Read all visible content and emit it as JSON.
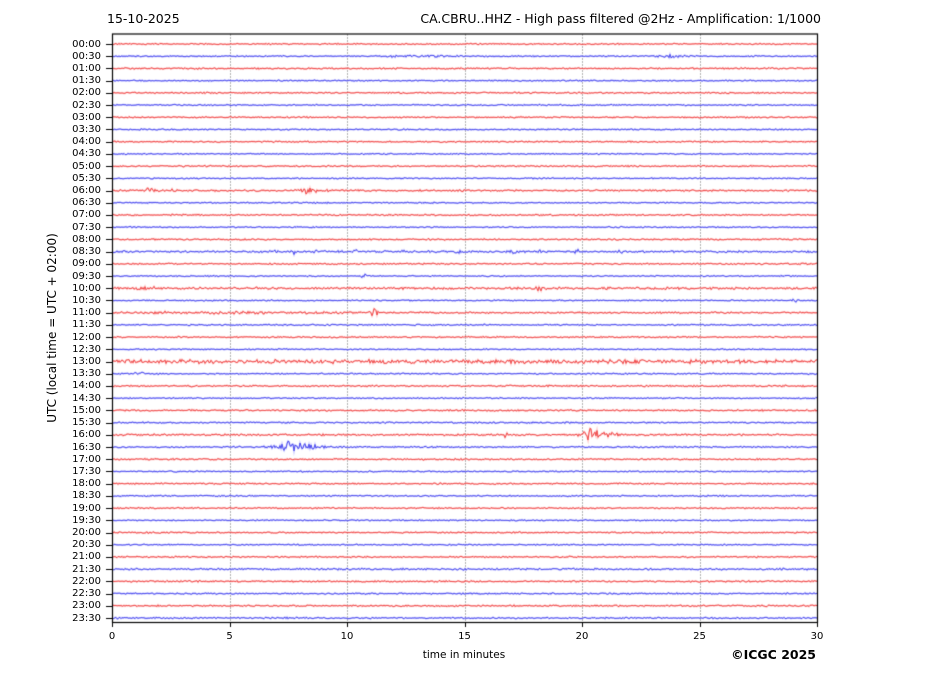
{
  "header": {
    "date": "15-10-2025",
    "title": "CA.CBRU..HHZ - High pass filtered @2Hz - Amplification: 1/1000"
  },
  "footer": {
    "xlabel": "time in minutes",
    "credit": "©ICGC 2025"
  },
  "axes": {
    "ylabel": "UTC (local time = UTC + 02:00)"
  },
  "chart_data": {
    "type": "line",
    "subtype": "helicorder",
    "station": "CA.CBRU..HHZ",
    "date": "15-10-2025",
    "filter": "High pass filtered @2Hz",
    "amplification": "1/1000",
    "title": "CA.CBRU..HHZ - High pass filtered @2Hz - Amplification: 1/1000",
    "xlabel": "time in minutes",
    "ylabel": "UTC (local time = UTC + 02:00)",
    "x_range": [
      0,
      30
    ],
    "x_ticks": [
      0,
      5,
      10,
      15,
      20,
      25,
      30
    ],
    "minutes_per_row": 30,
    "grid_minutes": [
      5,
      10,
      15,
      20,
      25
    ],
    "legend_position": "none",
    "colors": {
      "red_core": "#e82222",
      "red_halo": "#ff9c9c",
      "blue_core": "#2525e6",
      "blue_halo": "#9c9cff",
      "frame": "#000000",
      "grid": "#555555"
    },
    "rows": [
      {
        "label": "00:00",
        "color": "red",
        "noise": 0.55,
        "events": []
      },
      {
        "label": "00:30",
        "color": "blue",
        "noise": 0.5,
        "events": [
          {
            "t": 13.0,
            "a": 0.55,
            "w": 1.0
          },
          {
            "t": 23.9,
            "a": 0.95,
            "w": 0.5
          }
        ]
      },
      {
        "label": "01:00",
        "color": "red",
        "noise": 0.6,
        "events": []
      },
      {
        "label": "01:30",
        "color": "blue",
        "noise": 0.5,
        "events": []
      },
      {
        "label": "02:00",
        "color": "red",
        "noise": 0.55,
        "events": []
      },
      {
        "label": "02:30",
        "color": "blue",
        "noise": 0.5,
        "events": []
      },
      {
        "label": "03:00",
        "color": "red",
        "noise": 0.55,
        "events": []
      },
      {
        "label": "03:30",
        "color": "blue",
        "noise": 0.5,
        "events": []
      },
      {
        "label": "04:00",
        "color": "red",
        "noise": 0.55,
        "events": []
      },
      {
        "label": "04:30",
        "color": "blue",
        "noise": 0.5,
        "events": []
      },
      {
        "label": "05:00",
        "color": "red",
        "noise": 0.55,
        "events": []
      },
      {
        "label": "05:30",
        "color": "blue",
        "noise": 0.5,
        "events": []
      },
      {
        "label": "06:00",
        "color": "red",
        "noise": 0.65,
        "events": [
          {
            "t": 1.6,
            "a": 2.0,
            "w": 0.12
          },
          {
            "t": 2.4,
            "a": 0.7,
            "w": 0.3
          },
          {
            "t": 8.1,
            "a": 1.5,
            "w": 0.2
          },
          {
            "t": 8.6,
            "a": 0.6,
            "w": 0.4
          }
        ]
      },
      {
        "label": "06:30",
        "color": "blue",
        "noise": 0.5,
        "events": []
      },
      {
        "label": "07:00",
        "color": "red",
        "noise": 0.6,
        "events": []
      },
      {
        "label": "07:30",
        "color": "blue",
        "noise": 0.5,
        "events": []
      },
      {
        "label": "08:00",
        "color": "red",
        "noise": 0.6,
        "events": []
      },
      {
        "label": "08:30",
        "color": "blue",
        "noise": 0.75,
        "events": [
          {
            "t": 6.9,
            "a": 1.1,
            "w": 0.12
          },
          {
            "t": 7.7,
            "a": 1.3,
            "w": 0.1
          },
          {
            "t": 8.6,
            "a": 1.0,
            "w": 0.1
          },
          {
            "t": 10.4,
            "a": 1.2,
            "w": 0.1
          },
          {
            "t": 12.5,
            "a": 0.9,
            "w": 0.12
          },
          {
            "t": 14.7,
            "a": 1.1,
            "w": 0.1
          },
          {
            "t": 17.1,
            "a": 0.9,
            "w": 0.12
          },
          {
            "t": 18.3,
            "a": 1.2,
            "w": 0.1
          },
          {
            "t": 19.8,
            "a": 0.9,
            "w": 0.1
          },
          {
            "t": 21.6,
            "a": 0.8,
            "w": 0.12
          },
          {
            "t": 25.1,
            "a": 0.7,
            "w": 0.1
          },
          {
            "t": 29.4,
            "a": 0.8,
            "w": 0.1
          }
        ]
      },
      {
        "label": "09:00",
        "color": "red",
        "noise": 0.6,
        "events": []
      },
      {
        "label": "09:30",
        "color": "blue",
        "noise": 0.5,
        "events": [
          {
            "t": 10.7,
            "a": 1.5,
            "w": 0.08
          }
        ]
      },
      {
        "label": "10:00",
        "color": "red",
        "noise": 0.85,
        "events": [
          {
            "t": 1.5,
            "a": 1.0,
            "w": 0.25
          },
          {
            "t": 18.2,
            "a": 1.7,
            "w": 0.12
          }
        ]
      },
      {
        "label": "10:30",
        "color": "blue",
        "noise": 0.5,
        "events": [
          {
            "t": 29.1,
            "a": 1.3,
            "w": 0.12
          }
        ]
      },
      {
        "label": "11:00",
        "color": "red",
        "noise": 0.65,
        "events": [
          {
            "t": 6.0,
            "a": 0.45,
            "w": 2.5
          },
          {
            "t": 1.9,
            "a": 0.7,
            "w": 0.4
          },
          {
            "t": 11.2,
            "a": 2.4,
            "w": 0.15
          }
        ]
      },
      {
        "label": "11:30",
        "color": "blue",
        "noise": 0.55,
        "events": []
      },
      {
        "label": "12:00",
        "color": "red",
        "noise": 0.55,
        "events": []
      },
      {
        "label": "12:30",
        "color": "blue",
        "noise": 0.5,
        "events": []
      },
      {
        "label": "13:00",
        "color": "red",
        "noise": 1.5,
        "events": []
      },
      {
        "label": "13:30",
        "color": "blue",
        "noise": 0.55,
        "events": [
          {
            "t": 1.3,
            "a": 0.8,
            "w": 0.3
          }
        ]
      },
      {
        "label": "14:00",
        "color": "red",
        "noise": 0.65,
        "events": []
      },
      {
        "label": "14:30",
        "color": "blue",
        "noise": 0.5,
        "events": []
      },
      {
        "label": "15:00",
        "color": "red",
        "noise": 0.6,
        "events": []
      },
      {
        "label": "15:30",
        "color": "blue",
        "noise": 0.55,
        "events": []
      },
      {
        "label": "16:00",
        "color": "red",
        "noise": 0.7,
        "events": [
          {
            "t": 16.8,
            "a": 1.7,
            "w": 0.1
          },
          {
            "t": 20.35,
            "a": 4.2,
            "w": 0.22
          },
          {
            "t": 21.0,
            "a": 1.2,
            "w": 0.45
          }
        ]
      },
      {
        "label": "16:30",
        "color": "blue",
        "noise": 0.6,
        "events": [
          {
            "t": 7.1,
            "a": 1.2,
            "w": 0.3
          },
          {
            "t": 7.65,
            "a": 4.2,
            "w": 0.25
          },
          {
            "t": 8.4,
            "a": 1.4,
            "w": 0.5
          }
        ]
      },
      {
        "label": "17:00",
        "color": "red",
        "noise": 0.6,
        "events": []
      },
      {
        "label": "17:30",
        "color": "blue",
        "noise": 0.5,
        "events": []
      },
      {
        "label": "18:00",
        "color": "red",
        "noise": 0.55,
        "events": []
      },
      {
        "label": "18:30",
        "color": "blue",
        "noise": 0.55,
        "events": []
      },
      {
        "label": "19:00",
        "color": "red",
        "noise": 0.55,
        "events": []
      },
      {
        "label": "19:30",
        "color": "blue",
        "noise": 0.5,
        "events": []
      },
      {
        "label": "20:00",
        "color": "red",
        "noise": 0.55,
        "events": []
      },
      {
        "label": "20:30",
        "color": "blue",
        "noise": 0.5,
        "events": []
      },
      {
        "label": "21:00",
        "color": "red",
        "noise": 0.55,
        "events": []
      },
      {
        "label": "21:30",
        "color": "blue",
        "noise": 0.7,
        "events": []
      },
      {
        "label": "22:00",
        "color": "red",
        "noise": 0.6,
        "events": []
      },
      {
        "label": "22:30",
        "color": "blue",
        "noise": 0.55,
        "events": []
      },
      {
        "label": "23:00",
        "color": "red",
        "noise": 0.6,
        "events": []
      },
      {
        "label": "23:30",
        "color": "blue",
        "noise": 0.6,
        "events": []
      }
    ]
  }
}
